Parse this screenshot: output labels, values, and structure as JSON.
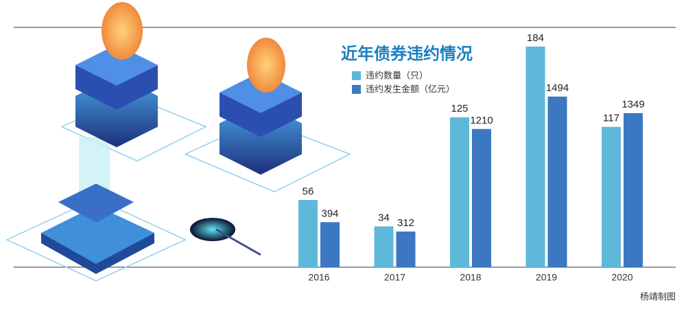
{
  "chart_data": {
    "type": "bar",
    "title": "近年债券违约情况",
    "categories": [
      "2016",
      "2017",
      "2018",
      "2019",
      "2020"
    ],
    "series": [
      {
        "name": "违约数量（只）",
        "color": "#5db8da",
        "values": [
          56,
          34,
          125,
          184,
          117
        ]
      },
      {
        "name": "违约发生金额（亿元）",
        "color": "#3b78c1",
        "values": [
          394,
          312,
          1210,
          1494,
          1349
        ],
        "axis": "y2"
      }
    ],
    "ylim": [
      0,
      200
    ],
    "y2lim": [
      0,
      2100
    ],
    "credit": "杨靖制图"
  }
}
